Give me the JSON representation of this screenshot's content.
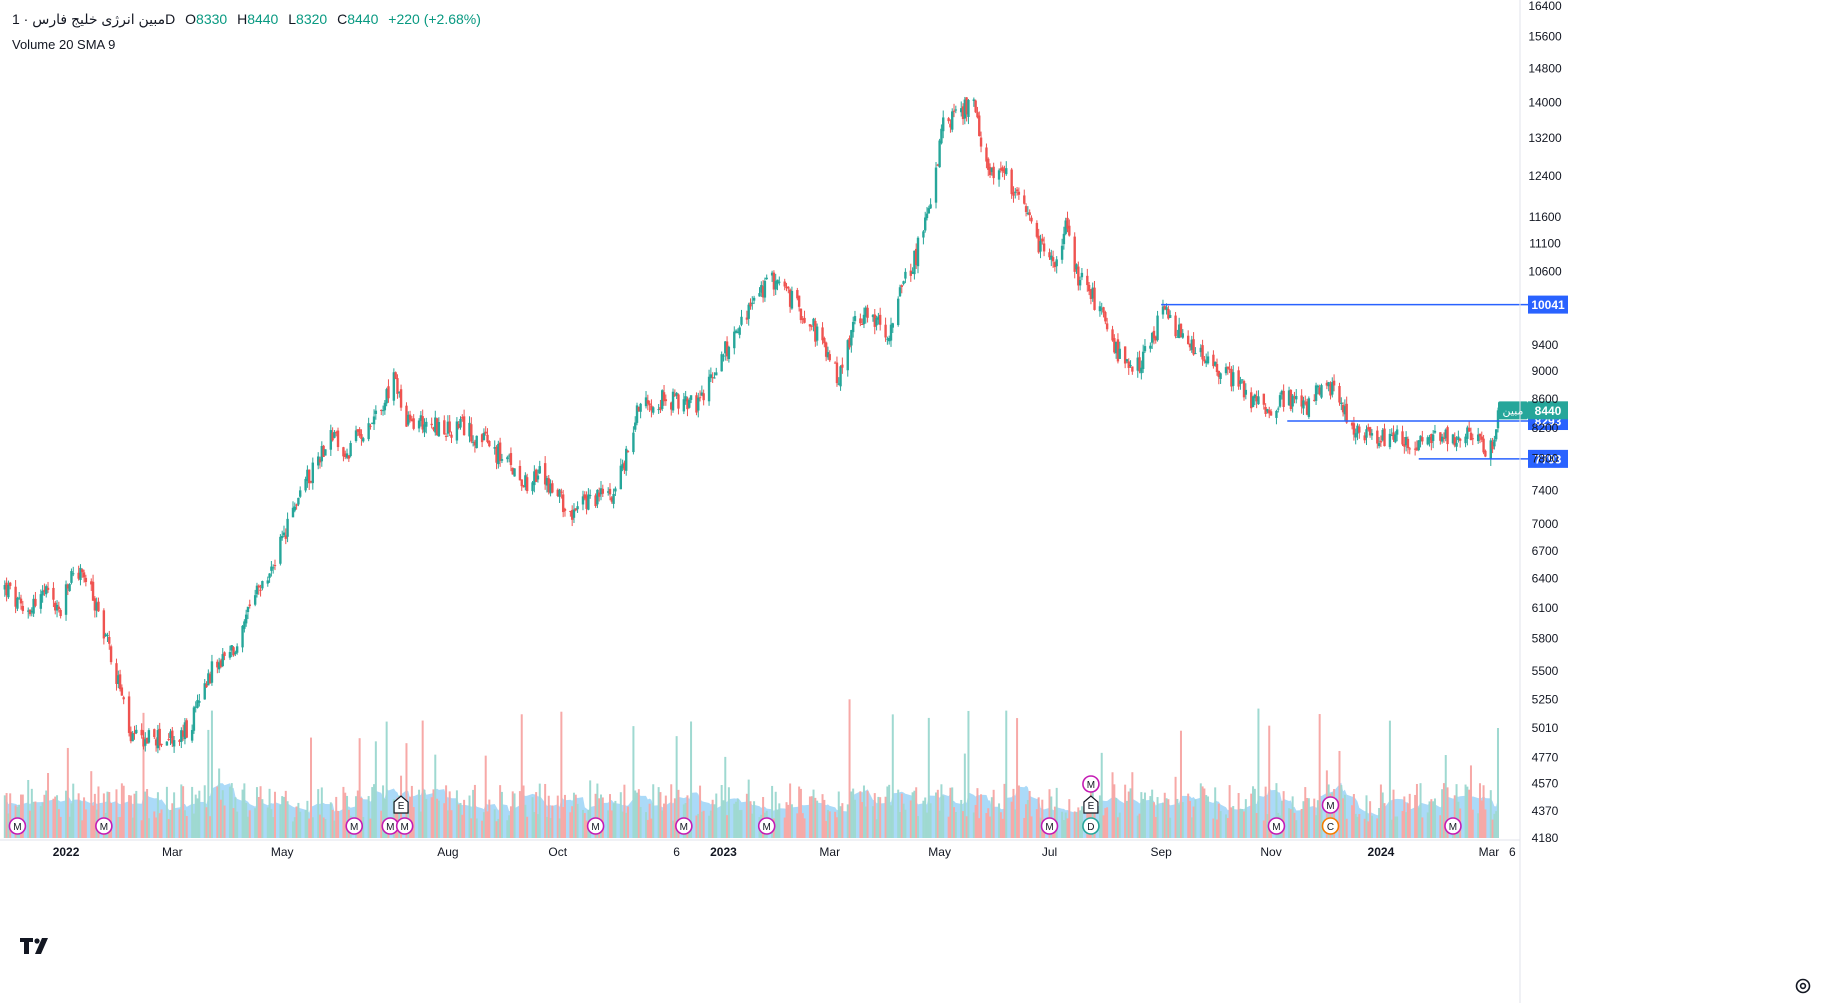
{
  "legend": {
    "symbol": "مبین انرژی خلیج فارس",
    "interval": "1D",
    "o_label": "O",
    "o": "8330",
    "h_label": "H",
    "h": "8440",
    "l_label": "L",
    "l": "8320",
    "c_label": "C",
    "c": "8440",
    "change": "+220 (+2.68%)",
    "volume_study": "Volume 20 SMA 9"
  },
  "colors": {
    "up": "#26a69a",
    "down": "#ef5350",
    "volume_up": "#9fd9d1",
    "volume_down": "#f7a9a7",
    "volume_ma_area": "#8fcdf6",
    "hline": "#2962ff",
    "badge_m": "#c41bb4",
    "badge_dc": "#f57c00",
    "badge_e": "#26a69a",
    "axis_text": "#131722"
  },
  "chart_data": {
    "type": "candlestick",
    "scale": "log",
    "ylim": [
      4180,
      16400
    ],
    "y_ticks": [
      4180,
      4370,
      4570,
      4770,
      5010,
      5250,
      5500,
      5800,
      6100,
      6400,
      6700,
      7000,
      7400,
      7800,
      8200,
      8600,
      9000,
      9400,
      10600,
      11100,
      11600,
      12400,
      13200,
      14000,
      14800,
      15600,
      16400
    ],
    "x_ticks": [
      "2022",
      "Mar",
      "May",
      "Aug",
      "Oct",
      "6",
      "2023",
      "Mar",
      "May",
      "Jul",
      "Sep",
      "Nov",
      "2024",
      "Mar",
      "6"
    ],
    "price_path": [
      [
        "2021-11-29",
        6300
      ],
      [
        "2021-12-08",
        6050
      ],
      [
        "2021-12-20",
        6250
      ],
      [
        "2021-12-29",
        6050
      ],
      [
        "2022-01-05",
        6500
      ],
      [
        "2022-01-12",
        6400
      ],
      [
        "2022-01-22",
        5900
      ],
      [
        "2022-01-31",
        5350
      ],
      [
        "2022-02-06",
        4900
      ],
      [
        "2022-02-15",
        4930
      ],
      [
        "2022-03-04",
        4900
      ],
      [
        "2022-03-12",
        5050
      ],
      [
        "2022-03-20",
        5450
      ],
      [
        "2022-04-05",
        5700
      ],
      [
        "2022-04-16",
        6200
      ],
      [
        "2022-04-23",
        6400
      ],
      [
        "2022-05-03",
        6900
      ],
      [
        "2022-05-11",
        7400
      ],
      [
        "2022-05-20",
        7750
      ],
      [
        "2022-05-28",
        8150
      ],
      [
        "2022-06-05",
        7800
      ],
      [
        "2022-06-15",
        8200
      ],
      [
        "2022-06-25",
        8500
      ],
      [
        "2022-07-03",
        8900
      ],
      [
        "2022-07-08",
        8250
      ],
      [
        "2022-07-20",
        8300
      ],
      [
        "2022-08-01",
        8150
      ],
      [
        "2022-08-10",
        8200
      ],
      [
        "2022-08-25",
        7950
      ],
      [
        "2022-09-05",
        7700
      ],
      [
        "2022-09-15",
        7500
      ],
      [
        "2022-09-22",
        7600
      ],
      [
        "2022-10-01",
        7300
      ],
      [
        "2022-10-10",
        7150
      ],
      [
        "2022-10-20",
        7300
      ],
      [
        "2022-11-01",
        7400
      ],
      [
        "2022-11-08",
        7800
      ],
      [
        "2022-11-15",
        8550
      ],
      [
        "2022-11-25",
        8600
      ],
      [
        "2022-12-08",
        8550
      ],
      [
        "2022-12-20",
        8550
      ],
      [
        "2022-12-28",
        9100
      ],
      [
        "2023-01-10",
        9700
      ],
      [
        "2023-01-20",
        10200
      ],
      [
        "2023-01-30",
        10500
      ],
      [
        "2023-02-08",
        10100
      ],
      [
        "2023-02-18",
        9800
      ],
      [
        "2023-02-28",
        9200
      ],
      [
        "2023-03-06",
        8900
      ],
      [
        "2023-03-13",
        9600
      ],
      [
        "2023-03-22",
        10000
      ],
      [
        "2023-04-01",
        9500
      ],
      [
        "2023-04-10",
        10300
      ],
      [
        "2023-04-18",
        10900
      ],
      [
        "2023-04-26",
        12000
      ],
      [
        "2023-05-03",
        13500
      ],
      [
        "2023-05-12",
        13800
      ],
      [
        "2023-05-20",
        13900
      ],
      [
        "2023-05-26",
        12600
      ],
      [
        "2023-06-05",
        12500
      ],
      [
        "2023-06-15",
        11800
      ],
      [
        "2023-06-25",
        11100
      ],
      [
        "2023-07-05",
        10700
      ],
      [
        "2023-07-10",
        11400
      ],
      [
        "2023-07-15",
        10600
      ],
      [
        "2023-07-25",
        10200
      ],
      [
        "2023-08-05",
        9400
      ],
      [
        "2023-08-15",
        8950
      ],
      [
        "2023-08-25",
        9300
      ],
      [
        "2023-09-02",
        9950
      ],
      [
        "2023-09-10",
        9600
      ],
      [
        "2023-09-20",
        9300
      ],
      [
        "2023-10-01",
        9050
      ],
      [
        "2023-10-12",
        8900
      ],
      [
        "2023-10-20",
        8600
      ],
      [
        "2023-11-01",
        8500
      ],
      [
        "2023-11-10",
        8600
      ],
      [
        "2023-11-20",
        8450
      ],
      [
        "2023-11-30",
        8800
      ],
      [
        "2023-12-10",
        8600
      ],
      [
        "2023-12-16",
        8200
      ],
      [
        "2023-12-25",
        8050
      ],
      [
        "2024-01-10",
        8050
      ],
      [
        "2024-01-25",
        8000
      ],
      [
        "2024-02-05",
        8050
      ],
      [
        "2024-02-20",
        8100
      ],
      [
        "2024-03-01",
        7900
      ],
      [
        "2024-03-05",
        8100
      ],
      [
        "2024-03-07",
        8440
      ]
    ],
    "price_high": 14300,
    "price_low": 4800,
    "last_price": 8440,
    "last_price_symbol": "مبین",
    "horizontal_lines": [
      {
        "price": 10041,
        "label": "10041",
        "from": "2023-09-01"
      },
      {
        "price": 8293,
        "label": "8293",
        "from": "2023-11-10"
      },
      {
        "price": 7793,
        "label": "7793",
        "from": "2024-01-22"
      }
    ],
    "event_markers": [
      {
        "date": "2021-12-05",
        "letter": "M",
        "row": 0
      },
      {
        "date": "2022-01-22",
        "letter": "M",
        "row": 0
      },
      {
        "date": "2022-06-10",
        "letter": "M",
        "row": 0
      },
      {
        "date": "2022-06-30",
        "letter": "M",
        "row": 0
      },
      {
        "date": "2022-07-08",
        "letter": "M",
        "row": 0
      },
      {
        "date": "2022-07-06",
        "letter": "E",
        "row": 1
      },
      {
        "date": "2022-10-22",
        "letter": "M",
        "row": 0
      },
      {
        "date": "2022-12-10",
        "letter": "M",
        "row": 0
      },
      {
        "date": "2023-01-25",
        "letter": "M",
        "row": 0
      },
      {
        "date": "2023-07-01",
        "letter": "M",
        "row": 0
      },
      {
        "date": "2023-07-24",
        "letter": "D",
        "row": 0
      },
      {
        "date": "2023-07-24",
        "letter": "E",
        "row": 1
      },
      {
        "date": "2023-07-24",
        "letter": "M",
        "row": 2
      },
      {
        "date": "2023-11-04",
        "letter": "M",
        "row": 0
      },
      {
        "date": "2023-12-04",
        "letter": "C",
        "row": 0
      },
      {
        "date": "2023-12-04",
        "letter": "M",
        "row": 1
      },
      {
        "date": "2024-02-10",
        "letter": "M",
        "row": 0
      }
    ]
  }
}
